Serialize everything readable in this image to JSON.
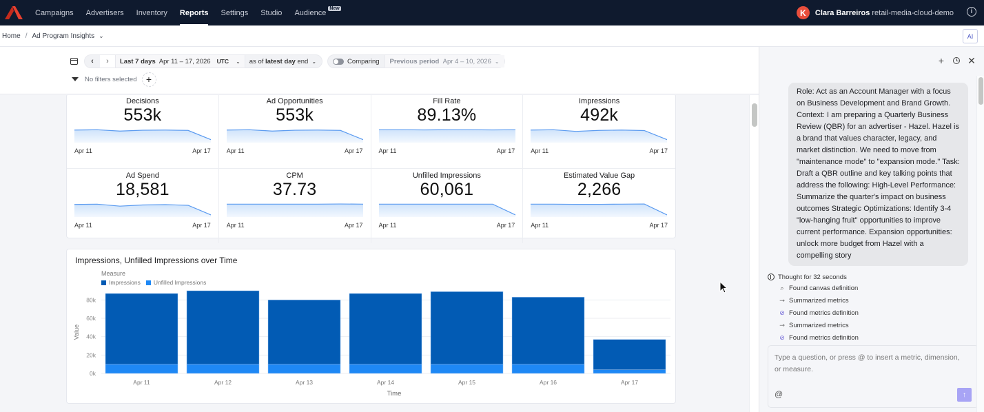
{
  "nav": {
    "items": [
      {
        "label": "Campaigns",
        "active": false
      },
      {
        "label": "Advertisers",
        "active": false
      },
      {
        "label": "Inventory",
        "active": false
      },
      {
        "label": "Reports",
        "active": true
      },
      {
        "label": "Settings",
        "active": false
      },
      {
        "label": "Studio",
        "active": false
      },
      {
        "label": "Audience",
        "active": false,
        "badge": "New"
      }
    ],
    "user_initial": "K",
    "user_name": "Clara Barreiros",
    "user_org": "retail-media-cloud-demo",
    "info_icon": "i"
  },
  "breadcrumb": {
    "home": "Home",
    "separator": "/",
    "current": "Ad Program Insights",
    "chevron": "⌄",
    "ai_button": "AI"
  },
  "filters": {
    "prev_arrow": "‹",
    "next_arrow": "›",
    "range_label": "Last 7 days",
    "range_dates": "Apr 11 – 17, 2026",
    "timezone": "UTC",
    "asof_prefix": "as of",
    "asof_bold": "latest day",
    "asof_suffix": "end",
    "comparing_label": "Comparing",
    "compare_mode": "Previous period",
    "compare_dates": "Apr 4 – 10, 2026",
    "no_filters": "No filters selected",
    "add_filter": "+"
  },
  "kpis": [
    {
      "title": "Decisions",
      "value": "553k",
      "from": "Apr 11",
      "to": "Apr 17",
      "trend": [
        0.78,
        0.8,
        0.72,
        0.77,
        0.78,
        0.76,
        0.2
      ]
    },
    {
      "title": "Ad Opportunities",
      "value": "553k",
      "from": "Apr 11",
      "to": "Apr 17",
      "trend": [
        0.78,
        0.8,
        0.72,
        0.77,
        0.78,
        0.76,
        0.2
      ]
    },
    {
      "title": "Fill Rate",
      "value": "89.13%",
      "from": "Apr 11",
      "to": "Apr 17",
      "trend": [
        0.8,
        0.8,
        0.79,
        0.8,
        0.8,
        0.79,
        0.8
      ]
    },
    {
      "title": "Impressions",
      "value": "492k",
      "from": "Apr 11",
      "to": "Apr 17",
      "trend": [
        0.78,
        0.8,
        0.7,
        0.76,
        0.78,
        0.75,
        0.2
      ]
    },
    {
      "title": "Ad Spend",
      "value": "18,581",
      "from": "Apr 11",
      "to": "Apr 17",
      "trend": [
        0.78,
        0.8,
        0.68,
        0.75,
        0.77,
        0.73,
        0.15
      ]
    },
    {
      "title": "CPM",
      "value": "37.73",
      "from": "Apr 11",
      "to": "Apr 17",
      "trend": [
        0.8,
        0.8,
        0.8,
        0.8,
        0.8,
        0.81,
        0.8
      ]
    },
    {
      "title": "Unfilled Impressions",
      "value": "60,061",
      "from": "Apr 11",
      "to": "Apr 17",
      "trend": [
        0.8,
        0.8,
        0.8,
        0.8,
        0.8,
        0.8,
        0.15
      ]
    },
    {
      "title": "Estimated Value Gap",
      "value": "2,266",
      "from": "Apr 11",
      "to": "Apr 17",
      "trend": [
        0.8,
        0.8,
        0.79,
        0.79,
        0.8,
        0.81,
        0.15
      ]
    }
  ],
  "chart_data": {
    "type": "bar",
    "stacked": true,
    "title": "Impressions, Unfilled Impressions over Time",
    "legend_title": "Measure",
    "legend_position": "top-left",
    "xlabel": "Time",
    "ylabel": "Value",
    "ylim": [
      0,
      90000
    ],
    "yticks": [
      0,
      20000,
      40000,
      60000,
      80000
    ],
    "ytick_labels": [
      "0k",
      "20k",
      "40k",
      "60k",
      "80k"
    ],
    "grid": true,
    "categories": [
      "Apr 11",
      "Apr 12",
      "Apr 13",
      "Apr 14",
      "Apr 15",
      "Apr 16",
      "Apr 17"
    ],
    "series": [
      {
        "name": "Unfilled Impressions",
        "color": "#1e88f5",
        "values": [
          10000,
          10000,
          10000,
          10000,
          10000,
          10000,
          4000
        ]
      },
      {
        "name": "Impressions",
        "color": "#025bb4",
        "values": [
          77000,
          80000,
          70000,
          77000,
          79000,
          73000,
          33000
        ]
      }
    ]
  },
  "ai_panel": {
    "tools": {
      "new": "+",
      "close": "✕"
    },
    "prompt": "Role: Act as an Account Manager with a focus on Business Development and Brand Growth. Context: I am preparing a Quarterly Business Review (QBR) for an advertiser - Hazel. Hazel is a brand that values character, legacy, and market distinction. We need to move from \"maintenance mode\" to \"expansion mode.\" Task: Draft a QBR outline and key talking points that address the following: High-Level Performance: Summarize the quarter's impact on business outcomes Strategic Optimizations: Identify 3-4 \"low-hanging fruit\" opportunities to improve current performance. Expansion opportunities: unlock more budget from Hazel with a compelling story",
    "thought_label": "Thought for 32 seconds",
    "steps": [
      {
        "icon": "search-icon",
        "glyph": "⌕",
        "label": "Found canvas definition"
      },
      {
        "icon": "summarize-icon",
        "glyph": "⊸",
        "label": "Summarized metrics"
      },
      {
        "icon": "metric-icon",
        "glyph": "⊘",
        "label": "Found metrics definition"
      },
      {
        "icon": "summarize-icon",
        "glyph": "⊸",
        "label": "Summarized metrics"
      },
      {
        "icon": "metric-icon",
        "glyph": "⊘",
        "label": "Found metrics definition"
      }
    ],
    "composer_placeholder": "Type a question, or press @ to insert a metric, dimension, or measure.",
    "mention_button": "@",
    "send_button": "↑"
  }
}
